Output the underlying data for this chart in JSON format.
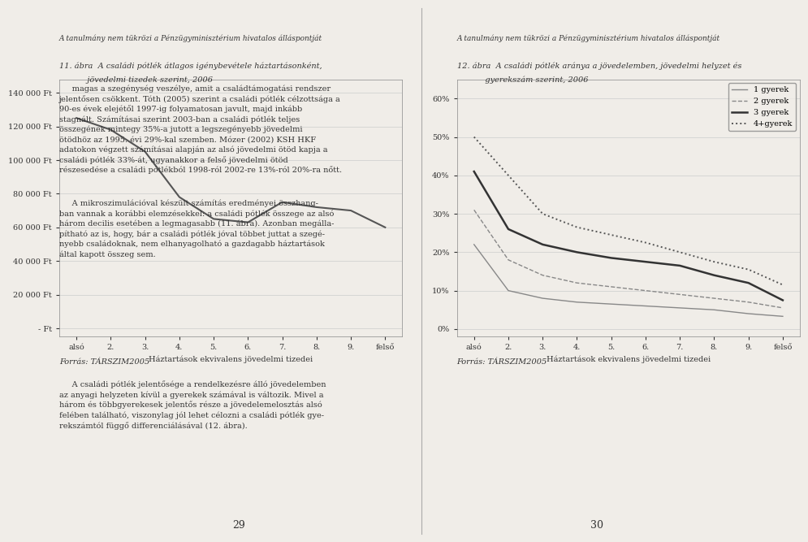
{
  "page_background": "#f0ede8",
  "chart1": {
    "title": "11. ábra  A családi pótlék átlagos igénybevétele háztartásonként,\n           jövedelmi tizedek szerint, 2006",
    "xlabel": "Háztartások ekvivalens jövedelmi tizedei",
    "ylabel": "",
    "xtick_labels": [
      "alsó",
      "2.",
      "3.",
      "4.",
      "5.",
      "6.",
      "7.",
      "8.",
      "9.",
      "felső"
    ],
    "ytick_labels": [
      "- Ft",
      "20 000 Ft",
      "40 000 Ft",
      "60 000 Ft",
      "80 000 Ft",
      "100 000 Ft",
      "120 000 Ft",
      "140 000 Ft"
    ],
    "ytick_values": [
      0,
      20000,
      40000,
      60000,
      80000,
      100000,
      120000,
      140000
    ],
    "ylim": [
      -5000,
      148000
    ],
    "data": [
      125000,
      118000,
      105000,
      78000,
      65000,
      63000,
      75000,
      72000,
      70000,
      60000
    ],
    "line_color": "#555555",
    "line_style": "-",
    "source": "Forrás: TÁRSZIM2005"
  },
  "chart2": {
    "title": "12. ábra  A családi pótlék aránya a jövedelemben, jövedelmi helyzet és\n           gyerekszám szerint, 2006",
    "xlabel": "Háztartások ekvivalens jövedelmi tizedei",
    "ylabel": "",
    "xtick_labels": [
      "alsó",
      "2.",
      "3.",
      "4.",
      "5.",
      "6.",
      "7.",
      "8.",
      "9.",
      "felső"
    ],
    "ytick_labels": [
      "0%",
      "10%",
      "20%",
      "30%",
      "40%",
      "50%",
      "60%"
    ],
    "ytick_values": [
      0,
      0.1,
      0.2,
      0.3,
      0.4,
      0.5,
      0.6
    ],
    "ylim": [
      -0.02,
      0.65
    ],
    "series": {
      "1 gyerek": [
        0.22,
        0.1,
        0.08,
        0.07,
        0.065,
        0.06,
        0.055,
        0.05,
        0.04,
        0.033
      ],
      "2 gyerek": [
        0.31,
        0.18,
        0.14,
        0.12,
        0.11,
        0.1,
        0.09,
        0.08,
        0.07,
        0.055
      ],
      "3 gyerek": [
        0.41,
        0.26,
        0.22,
        0.2,
        0.185,
        0.175,
        0.165,
        0.14,
        0.12,
        0.075
      ],
      "4+gyerek": [
        0.5,
        0.4,
        0.3,
        0.265,
        0.245,
        0.225,
        0.2,
        0.175,
        0.155,
        0.115
      ]
    },
    "line_styles": [
      "solid_thin",
      "dashed_thin",
      "solid_thick",
      "dotted_thick"
    ],
    "line_colors": [
      "#888888",
      "#888888",
      "#333333",
      "#555555"
    ],
    "source": "Forrás: TÁRSZIM2005"
  },
  "text_color": "#333333",
  "grid_color": "#cccccc",
  "axis_color": "#888888",
  "font_family": "serif"
}
